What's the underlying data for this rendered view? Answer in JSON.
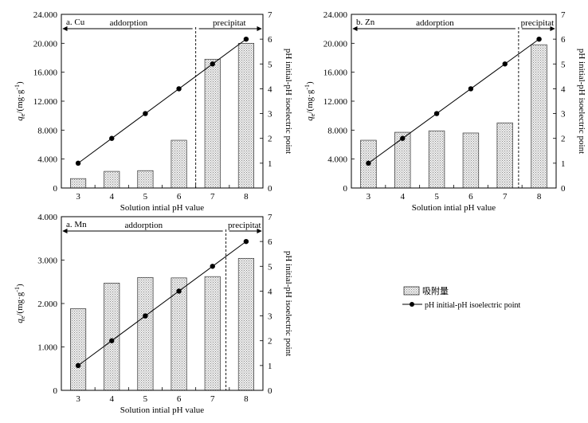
{
  "chart_data": [
    {
      "type": "bar",
      "panel_label": "a. Cu",
      "categories": [
        "3",
        "4",
        "5",
        "6",
        "7",
        "8"
      ],
      "bar_series_name": "吸附量",
      "bar_values": [
        1300,
        2300,
        2400,
        6600,
        17800,
        20000
      ],
      "line_series_name": "pH initial-pH isoelectric point",
      "line_values": [
        1,
        2,
        3,
        4,
        5,
        6
      ],
      "left_ylim": [
        0,
        24000
      ],
      "left_ticks": [
        "0",
        "4.000",
        "8.000",
        "12.000",
        "16.000",
        "20.000",
        "24.000"
      ],
      "right_ylim": [
        0,
        7
      ],
      "right_ticks": [
        "0",
        "1",
        "2",
        "3",
        "4",
        "5",
        "6",
        "7"
      ],
      "xlabel": "Solution intial pH value",
      "ylabel_left_symbol": "q",
      "ylabel_left_sub": "e",
      "ylabel_left_unit": "/(mg·g",
      "ylabel_left_sup": "-1",
      "ylabel_left_close": ")",
      "ylabel_right": "pH initial-pH isoelectric point",
      "region_left_label": "addorption",
      "region_right_label": "precipitat",
      "divider_at": 6.5
    },
    {
      "type": "bar",
      "panel_label": "b. Zn",
      "categories": [
        "3",
        "4",
        "5",
        "6",
        "7",
        "8"
      ],
      "bar_series_name": "吸附量",
      "bar_values": [
        6600,
        7700,
        7900,
        7600,
        9000,
        19800
      ],
      "line_series_name": "pH initial-pH isoelectric point",
      "line_values": [
        1,
        2,
        3,
        4,
        5,
        6
      ],
      "left_ylim": [
        0,
        24000
      ],
      "left_ticks": [
        "0",
        "4.000",
        "8.000",
        "12.000",
        "16.000",
        "20.000",
        "24.000"
      ],
      "right_ylim": [
        0,
        7
      ],
      "right_ticks": [
        "0",
        "1",
        "2",
        "3",
        "4",
        "5",
        "6",
        "7"
      ],
      "xlabel": "Solution intial pH value",
      "ylabel_left_symbol": "q",
      "ylabel_left_sub": "e",
      "ylabel_left_unit": "/(mg·g",
      "ylabel_left_sup": "-1",
      "ylabel_left_close": ")",
      "ylabel_right": "pH initial-pH isoelectric point",
      "region_left_label": "addorption",
      "region_right_label": "precipitat",
      "divider_at": 7.4
    },
    {
      "type": "bar",
      "panel_label": "a. Mn",
      "categories": [
        "3",
        "4",
        "5",
        "6",
        "7",
        "8"
      ],
      "bar_series_name": "吸附量",
      "bar_values": [
        1880,
        2470,
        2600,
        2590,
        2620,
        3040
      ],
      "line_series_name": "pH initial-pH isoelectric point",
      "line_values": [
        1,
        2,
        3,
        4,
        5,
        6
      ],
      "left_ylim": [
        0,
        4000
      ],
      "left_ticks": [
        "0",
        "1.000",
        "2.000",
        "3.000",
        "4.000"
      ],
      "right_ylim": [
        0,
        7
      ],
      "right_ticks": [
        "0",
        "1",
        "2",
        "3",
        "4",
        "5",
        "6",
        "7"
      ],
      "xlabel": "Solution intial pH value",
      "ylabel_left_symbol": "q",
      "ylabel_left_sub": "e",
      "ylabel_left_unit": "/(mg·g",
      "ylabel_left_sup": "-1",
      "ylabel_left_close": ")",
      "ylabel_right": "pH initial-pH isoelectric point",
      "region_left_label": "addorption",
      "region_right_label": "precipitat",
      "divider_at": 7.4
    }
  ],
  "legend": {
    "bar_label": "吸附量",
    "line_label": "pH initial-pH isoelectric point"
  },
  "colors": {
    "bar_fill": "#e6e6e6",
    "bar_stroke": "#333333",
    "line": "#000000",
    "marker": "#000000"
  }
}
